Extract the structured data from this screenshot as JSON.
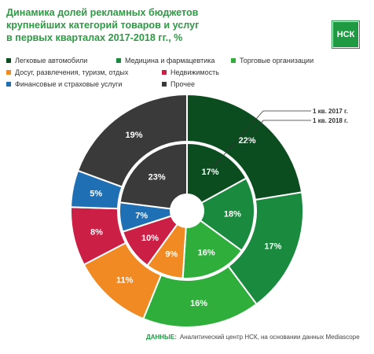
{
  "title": {
    "line1": "Динамика долей рекламных бюджетов",
    "line2": "крупнейших категорий товаров и услуг",
    "line3": "в первых кварталах 2017-2018 гг., %"
  },
  "logo_text": "НСК",
  "legend": [
    {
      "label": "Легковые автомобили",
      "color": "#0b4d1f"
    },
    {
      "label": "Медицина и фармацевтика",
      "color": "#1a8a3e"
    },
    {
      "label": "Торговые организации",
      "color": "#2fae3c"
    },
    {
      "label": "Досуг, развлечения, туризм, отдых",
      "color": "#f28a24"
    },
    {
      "label": "Недвижимость",
      "color": "#cc1f45"
    },
    {
      "label": "Финансовые и страховые услуги",
      "color": "#1f6fb5"
    },
    {
      "label": "Прочее",
      "color": "#3a3a3a"
    }
  ],
  "annotations": {
    "inner": "1 кв. 2017 г.",
    "outer": "1 кв. 2018 г."
  },
  "source": {
    "label": "ДАННЫЕ:",
    "text": "Аналитический центр НСК, на основании данных Mediascope"
  },
  "chart_data": {
    "type": "pie",
    "categories": [
      "Легковые автомобили",
      "Медицина и фармацевтика",
      "Торговые организации",
      "Досуг, развлечения, туризм, отдых",
      "Недвижимость",
      "Финансовые и страховые услуги",
      "Прочее"
    ],
    "series": [
      {
        "name": "1 кв. 2017 г.",
        "values": [
          17,
          18,
          16,
          9,
          10,
          7,
          23
        ]
      },
      {
        "name": "1 кв. 2018 г.",
        "values": [
          22,
          17,
          16,
          11,
          8,
          5,
          19
        ]
      }
    ],
    "unit": "%"
  }
}
